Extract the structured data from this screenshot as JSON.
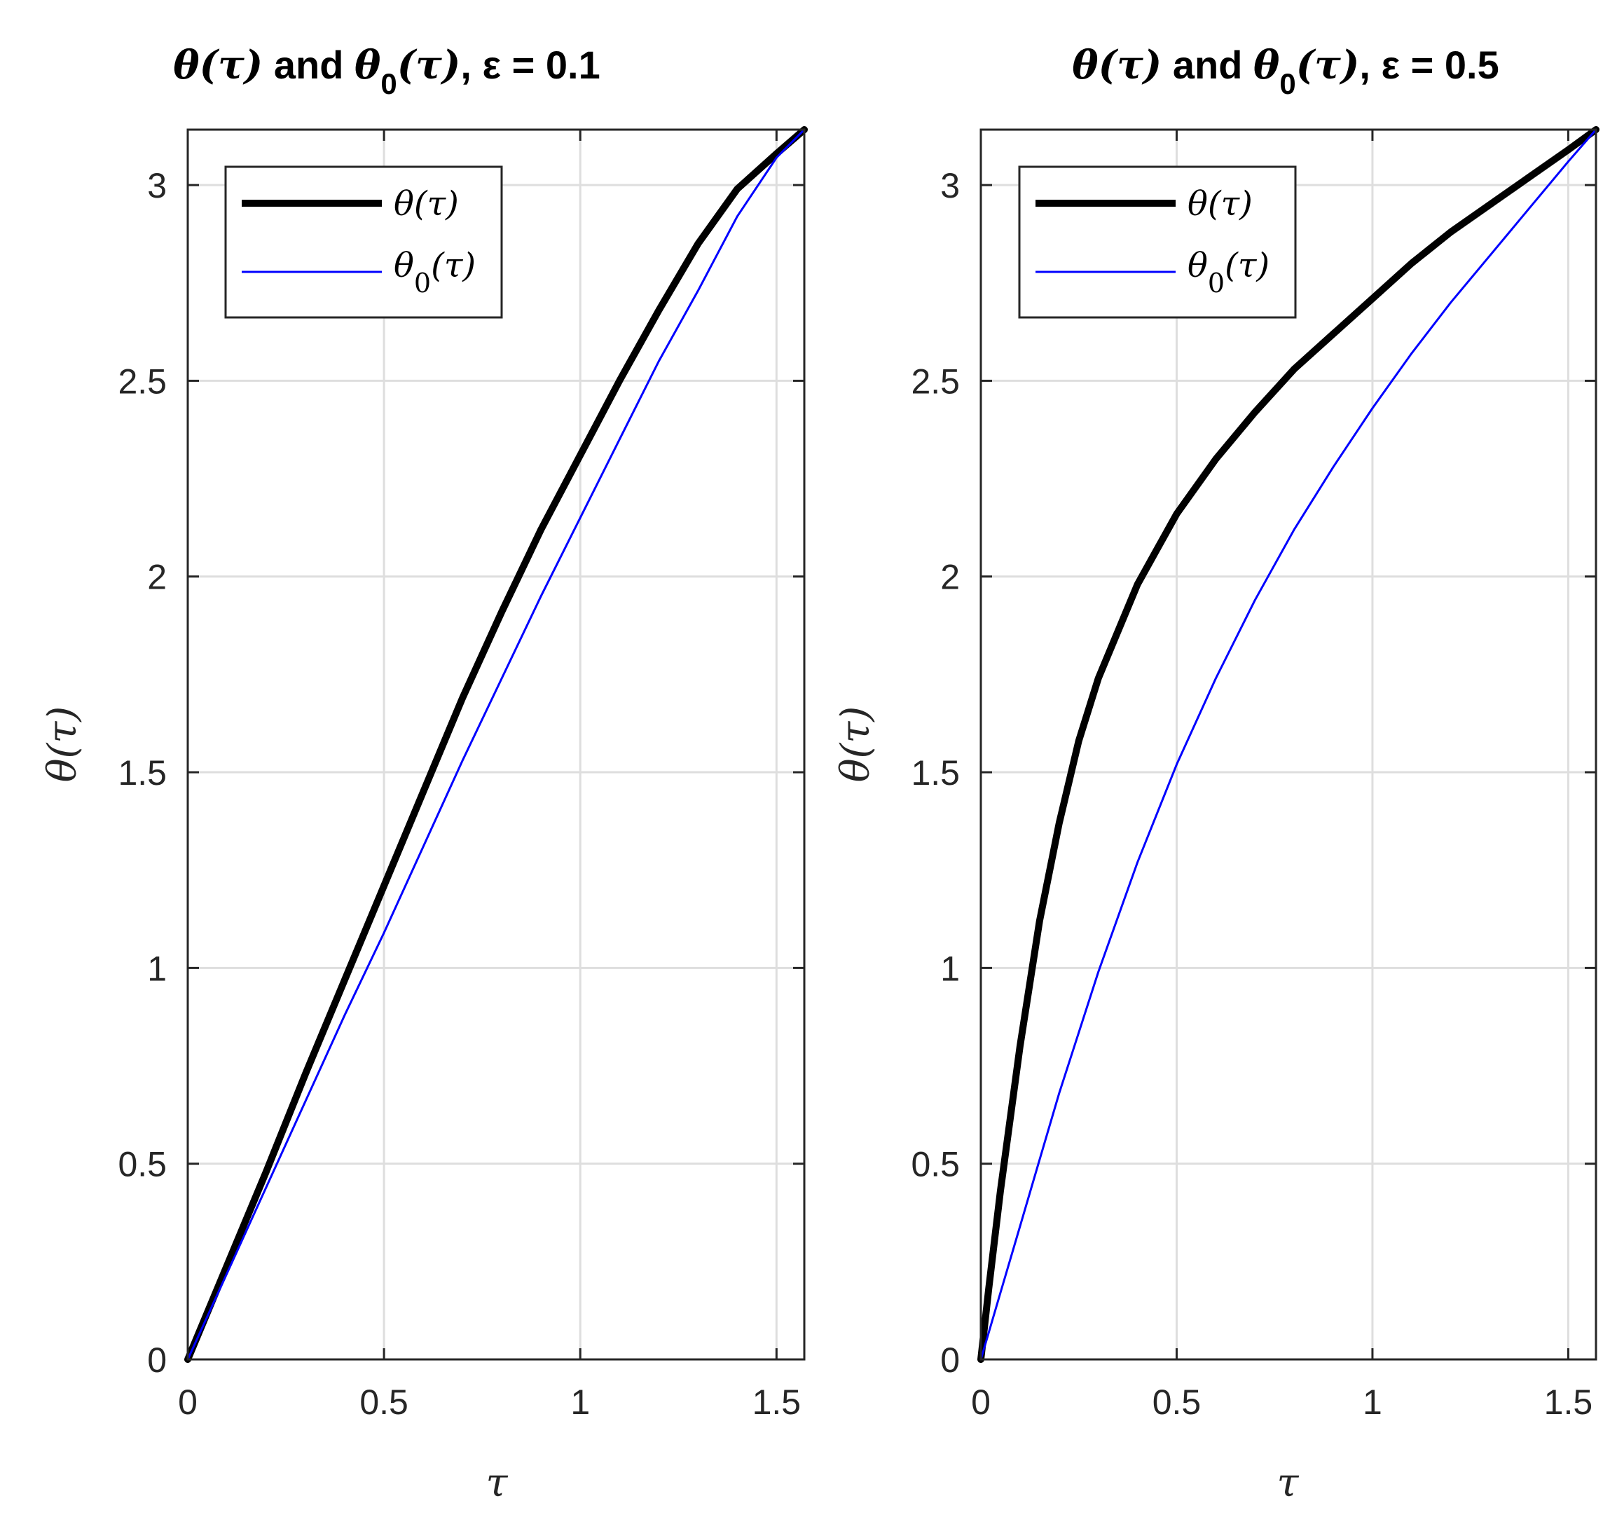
{
  "chart_data": [
    {
      "type": "line",
      "title": "θ(τ) and θ0(τ), ε = 0.1",
      "title_parts": {
        "prefix": "θ(τ)",
        "and": " and ",
        "theta0": "θ",
        "sub0": "0",
        "tau_part": "(τ)",
        "suffix": ", ε = 0.1"
      },
      "xlabel": "τ",
      "ylabel": "θ(τ)",
      "xlim": [
        0,
        1.5708
      ],
      "ylim": [
        0,
        3.1416
      ],
      "xticks": [
        "0",
        "0.5",
        "1",
        "1.5"
      ],
      "xtick_values": [
        0,
        0.5,
        1,
        1.5
      ],
      "yticks": [
        "0",
        "0.5",
        "1",
        "1.5",
        "2",
        "2.5",
        "3"
      ],
      "ytick_values": [
        0,
        0.5,
        1,
        1.5,
        2,
        2.5,
        3
      ],
      "grid": true,
      "legend_position": "top-left",
      "series": [
        {
          "name": "θ(τ)",
          "color": "#000000",
          "x": [
            0,
            0.1,
            0.2,
            0.3,
            0.4,
            0.5,
            0.6,
            0.7,
            0.8,
            0.9,
            1.0,
            1.1,
            1.2,
            1.3,
            1.4,
            1.5,
            1.5708
          ],
          "y": [
            0,
            0.24,
            0.48,
            0.73,
            0.97,
            1.21,
            1.45,
            1.69,
            1.91,
            2.12,
            2.31,
            2.5,
            2.68,
            2.85,
            2.99,
            3.08,
            3.1416
          ]
        },
        {
          "name": "θ0(τ)",
          "name_parts": {
            "base": "θ",
            "sub": "0",
            "tail": "(τ)"
          },
          "color": "#0000ff",
          "x": [
            0,
            0.1,
            0.2,
            0.3,
            0.4,
            0.5,
            0.6,
            0.7,
            0.8,
            0.9,
            1.0,
            1.1,
            1.2,
            1.3,
            1.4,
            1.5,
            1.5708
          ],
          "y": [
            0,
            0.22,
            0.44,
            0.66,
            0.88,
            1.09,
            1.31,
            1.53,
            1.74,
            1.95,
            2.15,
            2.35,
            2.55,
            2.73,
            2.92,
            3.07,
            3.1416
          ]
        }
      ]
    },
    {
      "type": "line",
      "title": "θ(τ) and θ0(τ), ε = 0.5",
      "title_parts": {
        "prefix": "θ(τ)",
        "and": " and ",
        "theta0": "θ",
        "sub0": "0",
        "tau_part": "(τ)",
        "suffix": ", ε = 0.5"
      },
      "xlabel": "τ",
      "ylabel": "θ(τ)",
      "xlim": [
        0,
        1.5708
      ],
      "ylim": [
        0,
        3.1416
      ],
      "xticks": [
        "0",
        "0.5",
        "1",
        "1.5"
      ],
      "xtick_values": [
        0,
        0.5,
        1,
        1.5
      ],
      "yticks": [
        "0",
        "0.5",
        "1",
        "1.5",
        "2",
        "2.5",
        "3"
      ],
      "ytick_values": [
        0,
        0.5,
        1,
        1.5,
        2,
        2.5,
        3
      ],
      "grid": true,
      "legend_position": "top-left",
      "series": [
        {
          "name": "θ(τ)",
          "color": "#000000",
          "x": [
            0,
            0.02,
            0.05,
            0.1,
            0.15,
            0.2,
            0.25,
            0.3,
            0.4,
            0.5,
            0.6,
            0.7,
            0.8,
            0.9,
            1.0,
            1.1,
            1.2,
            1.3,
            1.4,
            1.5,
            1.5708
          ],
          "y": [
            0,
            0.18,
            0.43,
            0.8,
            1.12,
            1.37,
            1.58,
            1.74,
            1.98,
            2.16,
            2.3,
            2.42,
            2.53,
            2.62,
            2.71,
            2.8,
            2.88,
            2.95,
            3.02,
            3.09,
            3.1416
          ]
        },
        {
          "name": "θ0(τ)",
          "name_parts": {
            "base": "θ",
            "sub": "0",
            "tail": "(τ)"
          },
          "color": "#0000ff",
          "x": [
            0,
            0.05,
            0.1,
            0.15,
            0.2,
            0.3,
            0.4,
            0.5,
            0.6,
            0.7,
            0.8,
            0.9,
            1.0,
            1.1,
            1.2,
            1.3,
            1.4,
            1.5,
            1.5708
          ],
          "y": [
            0,
            0.17,
            0.34,
            0.51,
            0.68,
            0.99,
            1.27,
            1.52,
            1.74,
            1.94,
            2.12,
            2.28,
            2.43,
            2.57,
            2.7,
            2.82,
            2.94,
            3.06,
            3.1416
          ]
        }
      ]
    }
  ]
}
